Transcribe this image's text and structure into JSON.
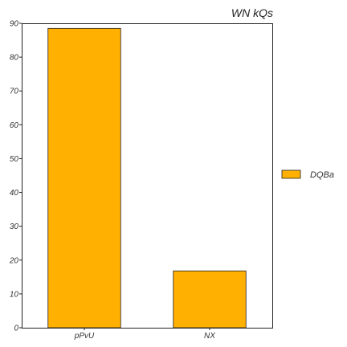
{
  "chart_data": {
    "type": "bar",
    "title": "WN kQs",
    "xlabel": "",
    "ylabel": "",
    "categories": [
      "pPvU",
      "NX"
    ],
    "series": [
      {
        "name": "DQBa",
        "values": [
          88.5,
          16.8
        ],
        "color": "#ffb000"
      }
    ],
    "ylim": [
      0,
      90
    ],
    "yticks": [
      0,
      10,
      20,
      30,
      40,
      50,
      60,
      70,
      80,
      90
    ],
    "grid": false,
    "legend_placement": "right"
  }
}
